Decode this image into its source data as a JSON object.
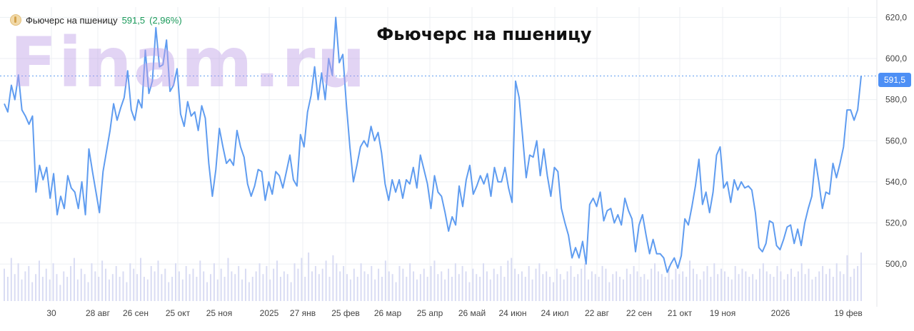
{
  "legend": {
    "instrument": "Фьючерс на пшеницу",
    "price": "591,5",
    "change": "(2,96%)"
  },
  "watermark": "Finam.ru",
  "current_price_label": "591,5",
  "colors": {
    "line": "#5f9cf0",
    "volume": "#d9dcf3",
    "grid": "#eceff3",
    "price_tag": "#4d8ff5",
    "watermark": "#c9b2ee"
  },
  "chart_data": {
    "type": "line",
    "title": "Фьючерс на пшеницу",
    "xlabel": "",
    "ylabel": "",
    "ylim": [
      482,
      625
    ],
    "grid": true,
    "x_ticks": [
      "30",
      "28 авг",
      "26 сен",
      "25 окт",
      "25 ноя",
      "2025",
      "27 янв",
      "25 фев",
      "26 мар",
      "25 апр",
      "26 май",
      "24 июн",
      "24 июл",
      "22 авг",
      "22 сен",
      "21 окт",
      "19 ноя",
      "2026",
      "19 фев"
    ],
    "y_ticks": [
      "620,0",
      "600,0",
      "580,0",
      "560,0",
      "540,0",
      "520,0",
      "500,0"
    ],
    "y_tick_values": [
      620,
      600,
      580,
      560,
      540,
      520,
      500
    ],
    "current_price": 591.5,
    "series": [
      {
        "values": [
          578,
          574,
          587,
          580,
          592,
          575,
          572,
          568,
          572,
          535,
          548,
          541,
          547,
          532,
          544,
          524,
          533,
          527,
          543,
          537,
          535,
          527,
          540,
          524,
          556,
          545,
          535,
          525,
          545,
          555,
          565,
          578,
          570,
          576,
          581,
          594,
          575,
          570,
          580,
          576,
          604,
          583,
          589,
          615,
          596,
          597,
          609,
          584,
          587,
          595,
          573,
          567,
          579,
          572,
          574,
          565,
          577,
          571,
          549,
          533,
          546,
          566,
          557,
          549,
          551,
          548,
          565,
          557,
          552,
          539,
          533,
          538,
          546,
          545,
          531,
          540,
          534,
          545,
          543,
          537,
          545,
          553,
          541,
          538,
          563,
          557,
          574,
          582,
          596,
          580,
          593,
          580,
          600,
          592,
          620,
          598,
          602,
          578,
          557,
          540,
          548,
          557,
          560,
          557,
          567,
          560,
          564,
          554,
          539,
          531,
          541,
          535,
          541,
          532,
          541,
          539,
          547,
          537,
          553,
          546,
          539,
          527,
          543,
          535,
          533,
          525,
          516,
          523,
          519,
          538,
          528,
          541,
          548,
          534,
          538,
          543,
          539,
          544,
          533,
          547,
          540,
          540,
          547,
          537,
          530,
          589,
          581,
          562,
          542,
          553,
          552,
          560,
          543,
          556,
          543,
          533,
          547,
          545,
          527,
          520,
          514,
          503,
          508,
          503,
          511,
          500,
          529,
          532,
          528,
          535,
          521,
          526,
          527,
          520,
          524,
          519,
          532,
          526,
          522,
          506,
          519,
          524,
          514,
          505,
          512,
          505,
          505,
          503,
          496,
          500,
          503,
          498,
          504,
          522,
          519,
          528,
          538,
          551,
          529,
          535,
          525,
          535,
          553,
          557,
          537,
          540,
          530,
          541,
          536,
          540,
          537,
          538,
          536,
          525,
          508,
          506,
          510,
          521,
          520,
          509,
          507,
          512,
          518,
          519,
          510,
          517,
          509,
          520,
          527,
          533,
          551,
          540,
          527,
          535,
          534,
          549,
          542,
          549,
          557,
          575,
          575,
          570,
          575,
          591.5
        ]
      }
    ],
    "volume": [
      12,
      9,
      16,
      10,
      14,
      8,
      11,
      13,
      7,
      10,
      15,
      9,
      12,
      8,
      14,
      10,
      6,
      11,
      9,
      13,
      16,
      8,
      12,
      10,
      7,
      14,
      11,
      9,
      15,
      12,
      8,
      10,
      13,
      9,
      11,
      7,
      14,
      12,
      10,
      16,
      9,
      8,
      13,
      11,
      15,
      10,
      12,
      7,
      9,
      14,
      11,
      8,
      13,
      10,
      12,
      9,
      15,
      11,
      7,
      10,
      14,
      8,
      12,
      9,
      16,
      11,
      10,
      13,
      8,
      12,
      7,
      9,
      11,
      14,
      10,
      13,
      8,
      12,
      15,
      9,
      11,
      10,
      7,
      14,
      12,
      16,
      9,
      18,
      11,
      13,
      10,
      12,
      15,
      9,
      17,
      14,
      11,
      13,
      10,
      8,
      12,
      9,
      14,
      11,
      10,
      13,
      8,
      12,
      9,
      15,
      11,
      10,
      7,
      13,
      12,
      9,
      14,
      11,
      8,
      10,
      12,
      9,
      13,
      15,
      10,
      11,
      8,
      12,
      9,
      14,
      10,
      13,
      11,
      7,
      12,
      10,
      9,
      14,
      11,
      8,
      12,
      10,
      13,
      9,
      15,
      16,
      12,
      10,
      11,
      9,
      13,
      8,
      12,
      14,
      10,
      11,
      9,
      7,
      12,
      10,
      8,
      11,
      13,
      9,
      10,
      12,
      14,
      8,
      11,
      10,
      9,
      13,
      12,
      7,
      10,
      11,
      9,
      8,
      12,
      10,
      13,
      11,
      9,
      10,
      8,
      12,
      14,
      11,
      10,
      9,
      13,
      8,
      12,
      10,
      11,
      9,
      15,
      12,
      10,
      8,
      11,
      13,
      9,
      14,
      10,
      12,
      11,
      9,
      8,
      13,
      10,
      12,
      11,
      9,
      10,
      8,
      12,
      14,
      11,
      10,
      9,
      13,
      11,
      8,
      10,
      12,
      9,
      11,
      14,
      10,
      12,
      8,
      9,
      11,
      13,
      10,
      12,
      9,
      14,
      11,
      10,
      17,
      9,
      12,
      13,
      18
    ]
  }
}
